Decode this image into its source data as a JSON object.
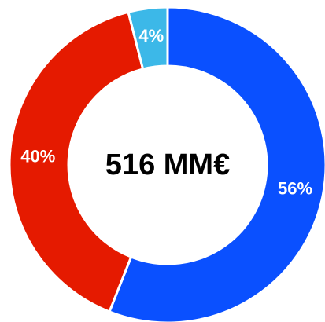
{
  "chart_data": {
    "type": "donut",
    "center_label": "516 MM€",
    "categories": [
      null,
      null,
      null
    ],
    "values": [
      56,
      40,
      4
    ],
    "value_labels": [
      "56%",
      "40%",
      "4%"
    ],
    "colors": [
      "#0a50ff",
      "#e51a00",
      "#3cb8e8"
    ]
  }
}
